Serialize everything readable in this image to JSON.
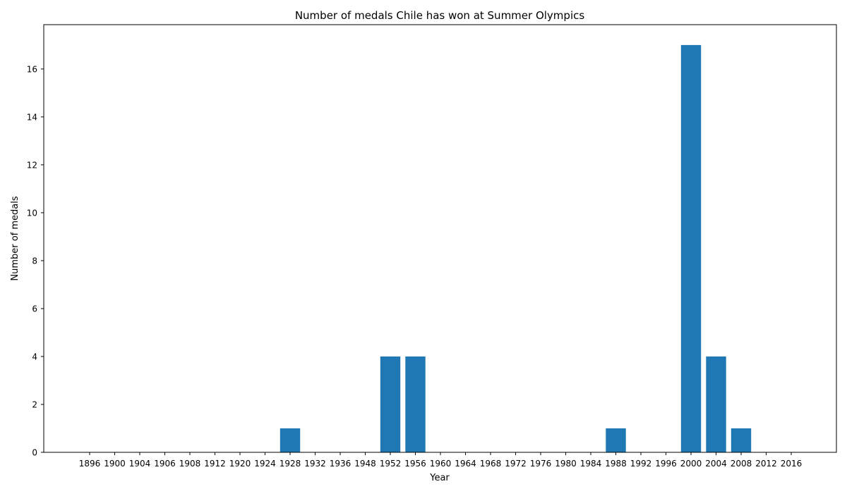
{
  "chart_data": {
    "type": "bar",
    "title": "Number of medals Chile has won at Summer Olympics",
    "xlabel": "Year",
    "ylabel": "Number of medals",
    "categories": [
      "1896",
      "1900",
      "1904",
      "1906",
      "1908",
      "1912",
      "1920",
      "1924",
      "1928",
      "1932",
      "1936",
      "1948",
      "1952",
      "1956",
      "1960",
      "1964",
      "1968",
      "1972",
      "1976",
      "1980",
      "1984",
      "1988",
      "1992",
      "1996",
      "2000",
      "2004",
      "2008",
      "2012",
      "2016"
    ],
    "values": [
      0,
      0,
      0,
      0,
      0,
      0,
      0,
      0,
      1,
      0,
      0,
      0,
      4,
      4,
      0,
      0,
      0,
      0,
      0,
      0,
      0,
      1,
      0,
      0,
      17,
      4,
      1,
      0,
      0
    ],
    "yticks": [
      0,
      2,
      4,
      6,
      8,
      10,
      12,
      14,
      16
    ],
    "ylim": [
      0,
      17.85
    ],
    "bar_color": "#1f77b4",
    "grid": false,
    "legend": "none"
  }
}
